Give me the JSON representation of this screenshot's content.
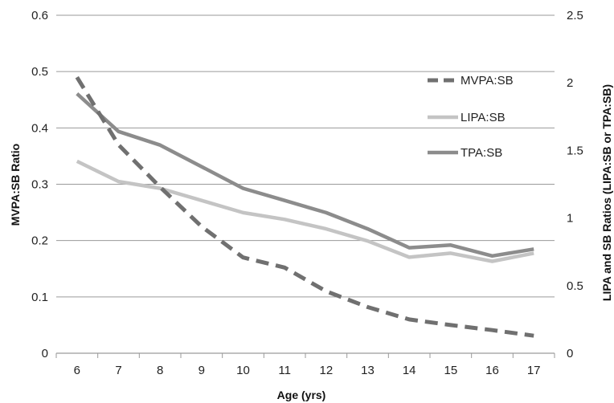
{
  "chart_data": {
    "type": "line",
    "x": [
      6,
      7,
      8,
      9,
      10,
      11,
      12,
      13,
      14,
      15,
      16,
      17
    ],
    "xlabel": "Age (yrs)",
    "ylabel": "MVPA:SB Ratio",
    "y2label": "LIPA and SB Ratios (LIPA:SB or TPA:SB)",
    "ylim": [
      0,
      0.6
    ],
    "y2lim": [
      0,
      2.5
    ],
    "y_ticks": [
      "0",
      "0.1",
      "0.2",
      "0.3",
      "0.4",
      "0.5",
      "0.6"
    ],
    "y2_ticks": [
      "0",
      "0.5",
      "1",
      "1.5",
      "2",
      "2.5"
    ],
    "grid": true,
    "legend_position": "right",
    "series": [
      {
        "name": "MVPA:SB",
        "axis": "left",
        "style": "dashed",
        "color": "#707070",
        "values": [
          0.49,
          0.37,
          0.295,
          0.225,
          0.17,
          0.152,
          0.11,
          0.082,
          0.06,
          0.05,
          0.041,
          0.031
        ]
      },
      {
        "name": "LIPA:SB",
        "axis": "right",
        "style": "solid",
        "color": "#c4c4c4",
        "values": [
          1.42,
          1.27,
          1.22,
          1.13,
          1.04,
          0.99,
          0.92,
          0.83,
          0.71,
          0.74,
          0.68,
          0.74
        ]
      },
      {
        "name": "TPA:SB",
        "axis": "right",
        "style": "solid",
        "color": "#8c8c8c",
        "values": [
          1.92,
          1.64,
          1.54,
          1.38,
          1.22,
          1.13,
          1.04,
          0.92,
          0.78,
          0.8,
          0.72,
          0.77
        ]
      }
    ]
  }
}
